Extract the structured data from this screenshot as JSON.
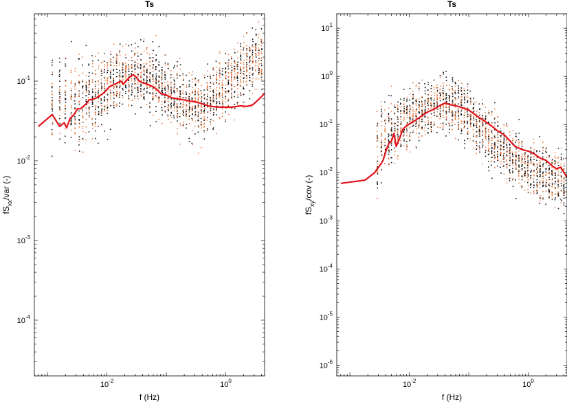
{
  "chart_data": [
    {
      "type": "scatter",
      "title": "Ts",
      "xlabel": "f (Hz)",
      "ylabel": {
        "base": "fS",
        "sub": "xx",
        "rest": "/var (-)"
      },
      "xscale": "log",
      "yscale": "log",
      "xlim": [
        0.0006,
        4.5
      ],
      "ylim": [
        2e-05,
        0.7
      ],
      "grid": false,
      "xticks": [
        {
          "value": 0.01,
          "base": "10",
          "exp": "-2"
        },
        {
          "value": 1,
          "base": "10",
          "exp": "0"
        }
      ],
      "yticks": [
        {
          "value": 0.0001,
          "base": "10",
          "exp": "-4"
        },
        {
          "value": 0.001,
          "base": "10",
          "exp": "-3"
        },
        {
          "value": 0.01,
          "base": "10",
          "exp": "-2"
        },
        {
          "value": 0.1,
          "base": "10",
          "exp": "-1"
        }
      ],
      "colors": {
        "scatter_a": "#111111",
        "scatter_b": "#e8804a",
        "median": "#e3121b"
      },
      "scatter": {
        "x_columns": [
          0.0012,
          0.0016,
          0.002,
          0.0025,
          0.0029,
          0.0034,
          0.0039,
          0.0045,
          0.005,
          0.0057,
          0.0064,
          0.0072,
          0.0081,
          0.0091,
          0.0102,
          0.0115,
          0.013,
          0.0146,
          0.0164,
          0.0184,
          0.0207,
          0.0233,
          0.0262,
          0.0295,
          0.0331,
          0.0372,
          0.0419,
          0.0471,
          0.053,
          0.0595,
          0.0669,
          0.0752,
          0.0846,
          0.0951,
          0.107,
          0.12,
          0.135,
          0.152,
          0.171,
          0.192,
          0.216,
          0.243,
          0.273,
          0.307,
          0.345,
          0.388,
          0.436,
          0.49,
          0.551,
          0.62,
          0.697,
          0.784,
          0.881,
          0.99,
          1.11,
          1.25,
          1.41,
          1.58,
          1.78,
          2.0,
          2.25,
          2.53,
          2.84,
          3.2,
          3.6,
          4.0
        ],
        "center": [
          0.05,
          0.06,
          0.06,
          0.05,
          0.05,
          0.05,
          0.05,
          0.06,
          0.06,
          0.06,
          0.06,
          0.07,
          0.07,
          0.075,
          0.08,
          0.085,
          0.09,
          0.095,
          0.1,
          0.105,
          0.11,
          0.115,
          0.115,
          0.12,
          0.12,
          0.12,
          0.115,
          0.11,
          0.105,
          0.1,
          0.095,
          0.09,
          0.085,
          0.08,
          0.075,
          0.07,
          0.065,
          0.06,
          0.058,
          0.055,
          0.053,
          0.05,
          0.05,
          0.05,
          0.05,
          0.05,
          0.05,
          0.055,
          0.06,
          0.065,
          0.07,
          0.075,
          0.08,
          0.09,
          0.1,
          0.11,
          0.12,
          0.13,
          0.14,
          0.15,
          0.16,
          0.17,
          0.18,
          0.19,
          0.2,
          0.2
        ],
        "spread_decades": [
          1.0,
          1.0,
          1.0,
          1.0,
          1.0,
          1.0,
          0.9,
          0.9,
          0.9,
          0.9,
          0.85,
          0.85,
          0.8,
          0.8,
          0.8,
          0.8,
          0.75,
          0.75,
          0.75,
          0.75,
          0.7,
          0.7,
          0.7,
          0.7,
          0.7,
          0.7,
          0.7,
          0.7,
          0.7,
          0.7,
          0.7,
          0.7,
          0.7,
          0.7,
          0.7,
          0.7,
          0.7,
          0.7,
          0.7,
          0.7,
          0.7,
          0.7,
          0.7,
          0.7,
          0.7,
          0.7,
          0.7,
          0.7,
          0.7,
          0.7,
          0.7,
          0.7,
          0.7,
          0.7,
          0.7,
          0.7,
          0.7,
          0.7,
          0.7,
          0.7,
          0.7,
          0.7,
          0.7,
          0.7,
          0.7,
          0.7
        ],
        "points_per_column": 30
      },
      "series": [
        {
          "x": [
            0.0007,
            0.0012,
            0.0016,
            0.0019,
            0.0021,
            0.0024,
            0.0028,
            0.0032,
            0.0036,
            0.0045,
            0.005,
            0.0062,
            0.0075,
            0.009,
            0.011,
            0.013,
            0.015,
            0.017,
            0.019,
            0.021,
            0.023,
            0.025,
            0.028,
            0.031,
            0.035,
            0.04,
            0.045,
            0.05,
            0.06,
            0.07,
            0.08,
            0.1,
            0.12,
            0.15,
            0.2,
            0.25,
            0.3,
            0.4,
            0.5,
            0.6,
            0.8,
            1.0,
            1.2,
            1.5,
            1.8,
            2.2,
            2.8,
            3.5,
            4.5
          ],
          "y": [
            0.027,
            0.038,
            0.027,
            0.03,
            0.026,
            0.034,
            0.038,
            0.045,
            0.045,
            0.052,
            0.058,
            0.06,
            0.065,
            0.072,
            0.085,
            0.09,
            0.095,
            0.1,
            0.092,
            0.1,
            0.108,
            0.115,
            0.12,
            0.112,
            0.1,
            0.095,
            0.093,
            0.09,
            0.085,
            0.078,
            0.07,
            0.067,
            0.062,
            0.06,
            0.058,
            0.056,
            0.055,
            0.052,
            0.049,
            0.048,
            0.047,
            0.047,
            0.047,
            0.048,
            0.049,
            0.048,
            0.05,
            0.058,
            0.07
          ]
        }
      ]
    },
    {
      "type": "scatter",
      "title": "Ts",
      "xlabel": "f (Hz)",
      "ylabel": {
        "base": "fS",
        "sub": "xy",
        "rest": "/cov (-)"
      },
      "xscale": "log",
      "yscale": "log",
      "xlim": [
        0.0006,
        4.5
      ],
      "ylim": [
        6e-07,
        20
      ],
      "grid": false,
      "xticks": [
        {
          "value": 0.01,
          "base": "10",
          "exp": "-2"
        },
        {
          "value": 1,
          "base": "10",
          "exp": "0"
        }
      ],
      "yticks": [
        {
          "value": 1e-06,
          "base": "10",
          "exp": "-6"
        },
        {
          "value": 1e-05,
          "base": "10",
          "exp": "-5"
        },
        {
          "value": 0.0001,
          "base": "10",
          "exp": "-4"
        },
        {
          "value": 0.001,
          "base": "10",
          "exp": "-3"
        },
        {
          "value": 0.01,
          "base": "10",
          "exp": "-2"
        },
        {
          "value": 0.1,
          "base": "10",
          "exp": "-1"
        },
        {
          "value": 1,
          "base": "10",
          "exp": "0"
        },
        {
          "value": 10,
          "base": "10",
          "exp": "1"
        }
      ],
      "colors": {
        "scatter_a": "#111111",
        "scatter_b": "#e8804a",
        "median": "#e3121b"
      },
      "scatter": {
        "x_columns": [
          0.0029,
          0.0034,
          0.0039,
          0.0045,
          0.005,
          0.0057,
          0.0064,
          0.0072,
          0.0081,
          0.0091,
          0.0102,
          0.0115,
          0.013,
          0.0146,
          0.0164,
          0.0184,
          0.0207,
          0.0233,
          0.0262,
          0.0295,
          0.0331,
          0.0372,
          0.0419,
          0.0471,
          0.053,
          0.0595,
          0.0669,
          0.0752,
          0.0846,
          0.0951,
          0.107,
          0.12,
          0.135,
          0.152,
          0.171,
          0.192,
          0.216,
          0.243,
          0.273,
          0.307,
          0.345,
          0.388,
          0.436,
          0.49,
          0.551,
          0.62,
          0.697,
          0.784,
          0.881,
          0.99,
          1.11,
          1.25,
          1.41,
          1.58,
          1.78,
          2.0,
          2.25,
          2.53,
          2.84,
          3.2,
          3.6,
          4.0
        ],
        "center": [
          0.03,
          0.04,
          0.05,
          0.06,
          0.07,
          0.08,
          0.09,
          0.1,
          0.11,
          0.12,
          0.13,
          0.14,
          0.15,
          0.16,
          0.18,
          0.2,
          0.22,
          0.24,
          0.26,
          0.28,
          0.28,
          0.28,
          0.27,
          0.26,
          0.25,
          0.24,
          0.22,
          0.2,
          0.18,
          0.16,
          0.14,
          0.12,
          0.1,
          0.09,
          0.08,
          0.07,
          0.06,
          0.05,
          0.045,
          0.04,
          0.035,
          0.03,
          0.028,
          0.025,
          0.022,
          0.02,
          0.018,
          0.016,
          0.015,
          0.014,
          0.013,
          0.012,
          0.011,
          0.01,
          0.009,
          0.009,
          0.008,
          0.008,
          0.007,
          0.007,
          0.007,
          0.006
        ],
        "spread_decades": [
          1.3,
          1.3,
          1.3,
          1.3,
          1.2,
          1.2,
          1.2,
          1.1,
          1.1,
          1.1,
          1.0,
          1.0,
          1.0,
          1.0,
          1.0,
          1.0,
          1.0,
          1.0,
          1.0,
          1.0,
          1.0,
          1.0,
          1.0,
          1.0,
          1.0,
          1.0,
          1.0,
          1.0,
          1.0,
          1.0,
          1.0,
          1.0,
          1.0,
          1.0,
          1.0,
          1.0,
          1.0,
          1.0,
          1.0,
          1.0,
          1.0,
          1.0,
          1.0,
          1.0,
          1.0,
          1.0,
          1.0,
          1.0,
          1.0,
          1.0,
          1.0,
          1.0,
          1.0,
          1.0,
          1.0,
          1.0,
          1.0,
          1.0,
          1.0,
          1.0,
          1.0,
          1.0
        ],
        "points_per_column": 30
      },
      "series": [
        {
          "x": [
            0.0007,
            0.0018,
            0.0026,
            0.0033,
            0.0036,
            0.0041,
            0.0045,
            0.005,
            0.0055,
            0.006,
            0.0068,
            0.0078,
            0.009,
            0.011,
            0.013,
            0.016,
            0.02,
            0.024,
            0.028,
            0.033,
            0.04,
            0.048,
            0.055,
            0.065,
            0.08,
            0.1,
            0.12,
            0.15,
            0.2,
            0.25,
            0.3,
            0.4,
            0.5,
            0.6,
            0.8,
            1.0,
            1.3,
            1.6,
            2.0,
            2.5,
            3.0,
            3.5,
            4.0,
            4.5
          ],
          "y": [
            0.006,
            0.007,
            0.01,
            0.015,
            0.018,
            0.03,
            0.04,
            0.045,
            0.065,
            0.035,
            0.05,
            0.08,
            0.095,
            0.11,
            0.125,
            0.15,
            0.18,
            0.2,
            0.22,
            0.25,
            0.28,
            0.26,
            0.25,
            0.24,
            0.22,
            0.2,
            0.17,
            0.14,
            0.11,
            0.09,
            0.075,
            0.06,
            0.045,
            0.035,
            0.03,
            0.028,
            0.024,
            0.02,
            0.018,
            0.014,
            0.012,
            0.013,
            0.01,
            0.008
          ]
        }
      ]
    }
  ]
}
